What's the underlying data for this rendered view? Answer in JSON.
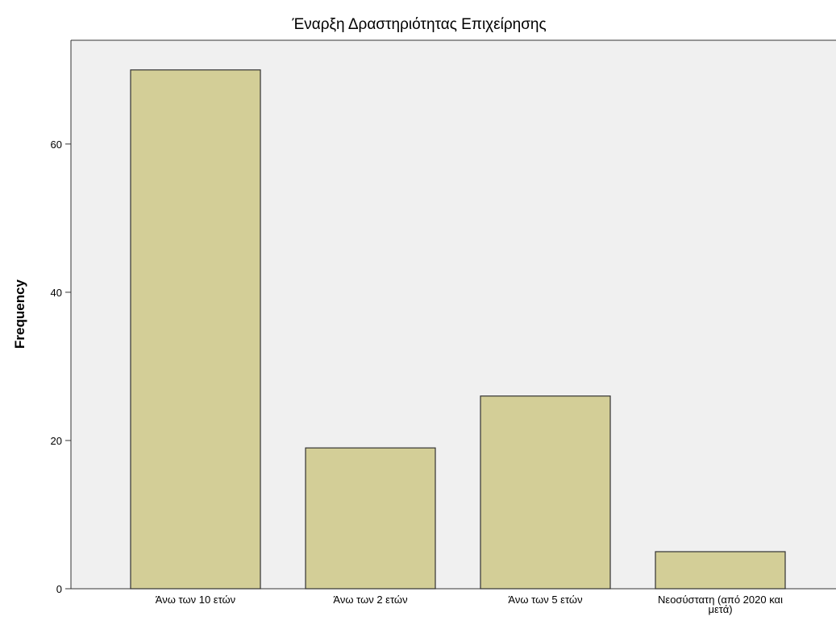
{
  "chart_data": {
    "type": "bar",
    "title": "Έναρξη Δραστηριότητας Επιχείρησης",
    "y_label": "Frequency",
    "categories": [
      "Άνω των 10 ετών",
      "Άνω των 2 ετών",
      "Άνω των 5 ετών",
      "Νεοσύστατη (από 2020 και μετά)"
    ],
    "values": [
      70,
      19,
      26,
      5
    ],
    "color": "#d3ce97",
    "ylim": [
      0,
      74
    ],
    "yticks": [
      0,
      20,
      40,
      60
    ],
    "grid": false
  }
}
